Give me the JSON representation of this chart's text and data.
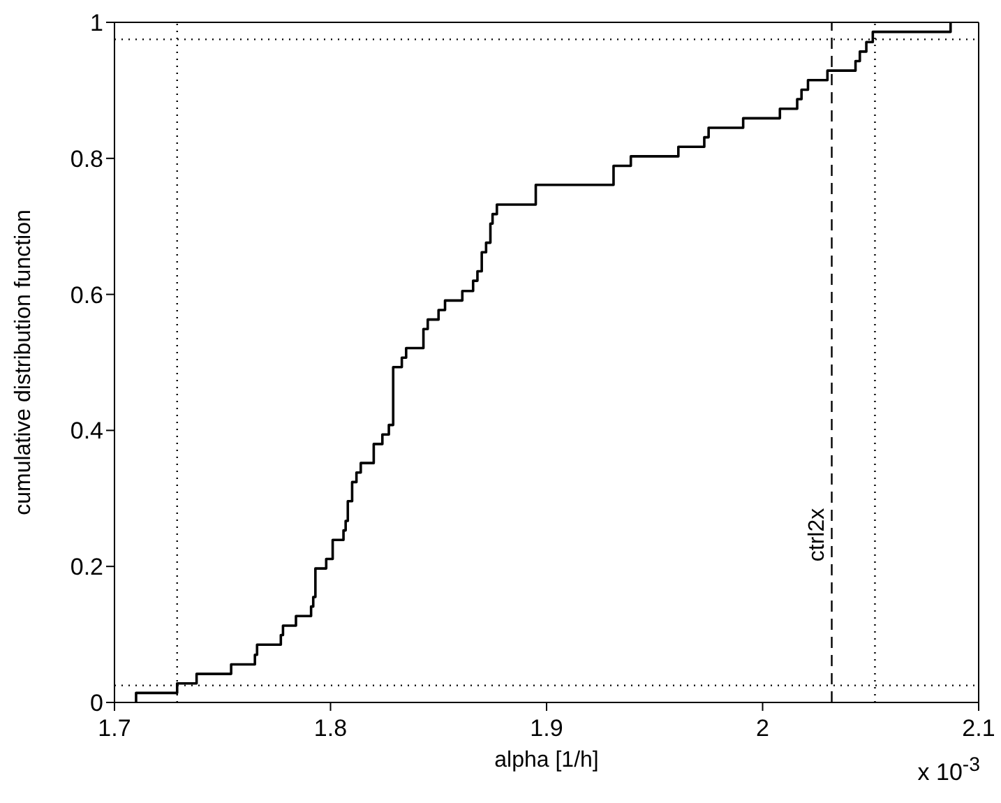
{
  "chart_data": {
    "type": "step",
    "xlabel": "alpha [1/h]",
    "ylabel": "cumulative distribution function",
    "annotations": [
      "x 10$^{-3}$"
    ],
    "xlim": [
      1.7,
      2.1
    ],
    "xticks": [
      1.7,
      1.8,
      1.9,
      2,
      2.1
    ],
    "ylim": [
      0,
      1
    ],
    "yticks": [
      0,
      0.2,
      0.4,
      0.6,
      0.8,
      1
    ],
    "marker": "none",
    "line_style": "solid",
    "ref_lines": [
      {
        "axis": "x",
        "value": 1.729,
        "color": "#000000",
        "line_style": "dotted"
      },
      {
        "axis": "x",
        "value": 2.052,
        "color": "#000000",
        "line_style": "dotted"
      },
      {
        "axis": "y",
        "value": 0.025,
        "color": "#000000",
        "line_style": "dotted"
      },
      {
        "axis": "y",
        "value": 0.975,
        "color": "#000000",
        "line_style": "dotted"
      },
      {
        "axis": "x",
        "value": 2.032,
        "label": "ctrl2x",
        "color": "#000000",
        "line_style": "dashed"
      }
    ],
    "series": [
      {
        "color": "#000000",
        "x": [
          1.71,
          1.71,
          1.729,
          1.738,
          1.754,
          1.765,
          1.766,
          1.777,
          1.778,
          1.784,
          1.791,
          1.792,
          1.793,
          1.798,
          1.801,
          1.806,
          1.807,
          1.808,
          1.81,
          1.812,
          1.814,
          1.82,
          1.824,
          1.827,
          1.829,
          1.833,
          1.835,
          1.843,
          1.845,
          1.85,
          1.853,
          1.861,
          1.866,
          1.868,
          1.87,
          1.872,
          1.874,
          1.875,
          1.877,
          1.895,
          1.931,
          1.939,
          1.961,
          1.973,
          1.975,
          1.991,
          2.008,
          2.016,
          2.018,
          2.021,
          2.03,
          2.043,
          2.045,
          2.048,
          2.051,
          2.087
        ],
        "values": [
          0,
          0.014,
          0.028,
          0.042,
          0.056,
          0.07,
          0.085,
          0.099,
          0.113,
          0.127,
          0.141,
          0.155,
          0.197,
          0.211,
          0.239,
          0.253,
          0.267,
          0.296,
          0.324,
          0.338,
          0.352,
          0.38,
          0.394,
          0.408,
          0.493,
          0.507,
          0.521,
          0.549,
          0.563,
          0.577,
          0.591,
          0.605,
          0.62,
          0.634,
          0.662,
          0.676,
          0.704,
          0.718,
          0.732,
          0.761,
          0.789,
          0.803,
          0.817,
          0.831,
          0.845,
          0.859,
          0.873,
          0.887,
          0.901,
          0.915,
          0.929,
          0.943,
          0.957,
          0.971,
          0.986,
          1
        ]
      }
    ]
  }
}
